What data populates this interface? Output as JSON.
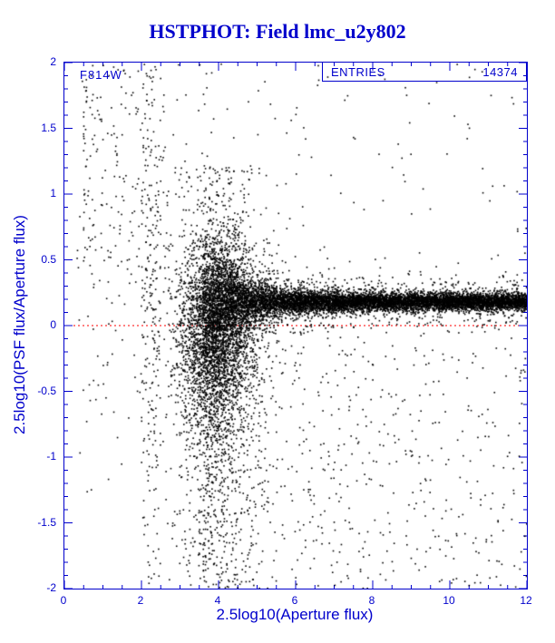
{
  "chart_data": {
    "type": "scatter",
    "title": "HSTPHOT: Field lmc_u2y802",
    "xlabel": "2.5log10(Aperture flux)",
    "ylabel": "2.5log10(PSF flux/Aperture flux)",
    "xlim": [
      0,
      12
    ],
    "ylim": [
      -2,
      2
    ],
    "grid": false,
    "annotation": "F814W",
    "stats_box": {
      "label": "ENTRIES",
      "value": "14374"
    },
    "entries": 14374,
    "x_ticks": {
      "values": [
        0,
        2,
        4,
        6,
        8,
        10,
        12
      ],
      "labels": [
        "0",
        "2",
        "4",
        "6",
        "8",
        "10",
        "12"
      ]
    },
    "y_ticks": {
      "values": [
        -2,
        -1.5,
        -1,
        -0.5,
        0,
        0.5,
        1,
        1.5,
        2
      ],
      "labels": [
        "-2",
        "-1.5",
        "-1",
        "-0.5",
        "0",
        "0.5",
        "1",
        "1.5",
        "2"
      ]
    },
    "x_minor_step": 0.5,
    "y_minor_step": 0.1,
    "reference_line": {
      "y": 0,
      "color": "#ff0000",
      "style": "dotted"
    },
    "colors": {
      "axis": "#0000cc",
      "points": "#000000",
      "title": "#0000cc",
      "background": "#ffffff"
    },
    "point_cloud": {
      "seed": 20240802,
      "count": 14374,
      "components": [
        {
          "kind": "band",
          "weight": 0.649,
          "x": [
            3.6,
            12
          ],
          "x_pow": 1.05,
          "center": 0.18,
          "sig_base": 0.032,
          "sig_amp": 0.24,
          "sig_scale": 0.9,
          "tail_frac": 0.12,
          "tail_mult": 3,
          "drop_frac": 0.012,
          "drop": [
            0.3,
            1.9
          ]
        },
        {
          "kind": "gauss",
          "weight": 0.135,
          "x_mean": 3.95,
          "x_sig": 0.5,
          "x_clip": [
            2.7,
            6.0
          ],
          "y_mean": 0.05,
          "y_sig": 0.3
        },
        {
          "kind": "gauss",
          "weight": 0.08,
          "x_mean": 3.9,
          "x_sig": 0.55,
          "x_clip": [
            2.7,
            6.2
          ],
          "y_mean": -0.35,
          "y_sig": 0.38
        },
        {
          "kind": "gauss_x_uniform_y",
          "weight": 0.055,
          "x_mean": 3.9,
          "x_sig": 0.62,
          "x_clip": [
            2.6,
            6.5
          ],
          "y": [
            -2,
            1.2
          ]
        },
        {
          "kind": "uniform_x_gauss_y",
          "weight": 0.008,
          "x": [
            0.3,
            2.7
          ],
          "y_mean": 0.7,
          "y_sig": 0.6
        },
        {
          "kind": "uniform",
          "weight": 0.004,
          "x": [
            0.4,
            2.7
          ],
          "y": [
            -1.3,
            2
          ]
        },
        {
          "kind": "uniform_x_gauss_y",
          "weight": 0.008,
          "x": [
            2.0,
            2.5
          ],
          "y_mean": 0.1,
          "y_sig": 0.8
        },
        {
          "kind": "uniform",
          "weight": 0.007,
          "x": [
            2.0,
            2.5
          ],
          "y": [
            -2,
            2
          ]
        },
        {
          "kind": "pow_uniform",
          "weight": 0.038,
          "x": [
            3.6,
            12
          ],
          "x_pow": 1.7,
          "y": [
            -2,
            -0.15
          ]
        },
        {
          "kind": "pow_uniform",
          "weight": 0.016,
          "x": [
            0.5,
            12
          ],
          "x_pow": 2.2,
          "y": [
            0.45,
            2
          ]
        }
      ]
    }
  }
}
